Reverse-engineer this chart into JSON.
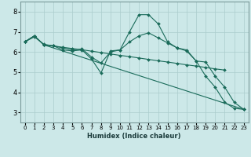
{
  "background_color": "#cce8e8",
  "grid_color": "#aacccc",
  "line_color": "#1a6b5a",
  "xlabel": "Humidex (Indice chaleur)",
  "xlim": [
    -0.5,
    23.5
  ],
  "ylim": [
    2.5,
    8.5
  ],
  "xticks": [
    0,
    1,
    2,
    3,
    4,
    5,
    6,
    7,
    8,
    9,
    10,
    11,
    12,
    13,
    14,
    15,
    16,
    17,
    18,
    19,
    20,
    21,
    22,
    23
  ],
  "yticks": [
    3,
    4,
    5,
    6,
    7,
    8
  ],
  "series": [
    {
      "x": [
        0,
        1,
        2,
        3,
        4,
        5,
        6,
        7,
        8,
        9,
        10,
        11,
        12,
        13,
        14,
        15,
        16,
        17,
        18,
        19,
        20,
        21,
        22,
        23
      ],
      "y": [
        6.5,
        6.8,
        6.35,
        6.3,
        6.1,
        6.05,
        6.1,
        5.65,
        4.95,
        6.05,
        6.1,
        7.0,
        7.85,
        7.85,
        7.4,
        6.5,
        6.2,
        6.1,
        5.55,
        4.8,
        4.25,
        3.5,
        3.2,
        3.15
      ]
    },
    {
      "x": [
        0,
        1,
        2,
        3,
        4,
        5,
        6,
        7,
        8,
        9,
        10,
        11,
        12,
        13,
        14,
        15,
        16,
        17,
        18,
        19,
        20,
        21,
        22,
        23
      ],
      "y": [
        6.5,
        6.8,
        6.35,
        6.3,
        6.2,
        6.1,
        6.15,
        5.75,
        5.45,
        6.0,
        6.1,
        6.5,
        6.8,
        6.95,
        6.7,
        6.45,
        6.2,
        6.05,
        5.55,
        5.5,
        4.8,
        4.25,
        3.5,
        3.15
      ]
    },
    {
      "x": [
        0,
        1,
        2,
        3,
        4,
        5,
        6,
        7,
        8,
        9,
        10,
        11,
        12,
        13,
        14,
        15,
        16,
        17,
        18,
        19,
        20,
        21
      ],
      "y": [
        6.5,
        6.75,
        6.38,
        6.3,
        6.23,
        6.17,
        6.11,
        6.04,
        5.97,
        5.9,
        5.83,
        5.77,
        5.7,
        5.63,
        5.56,
        5.5,
        5.43,
        5.36,
        5.3,
        5.23,
        5.16,
        5.1
      ]
    },
    {
      "x": [
        0,
        1,
        2,
        23
      ],
      "y": [
        6.5,
        6.8,
        6.35,
        3.15
      ]
    }
  ]
}
